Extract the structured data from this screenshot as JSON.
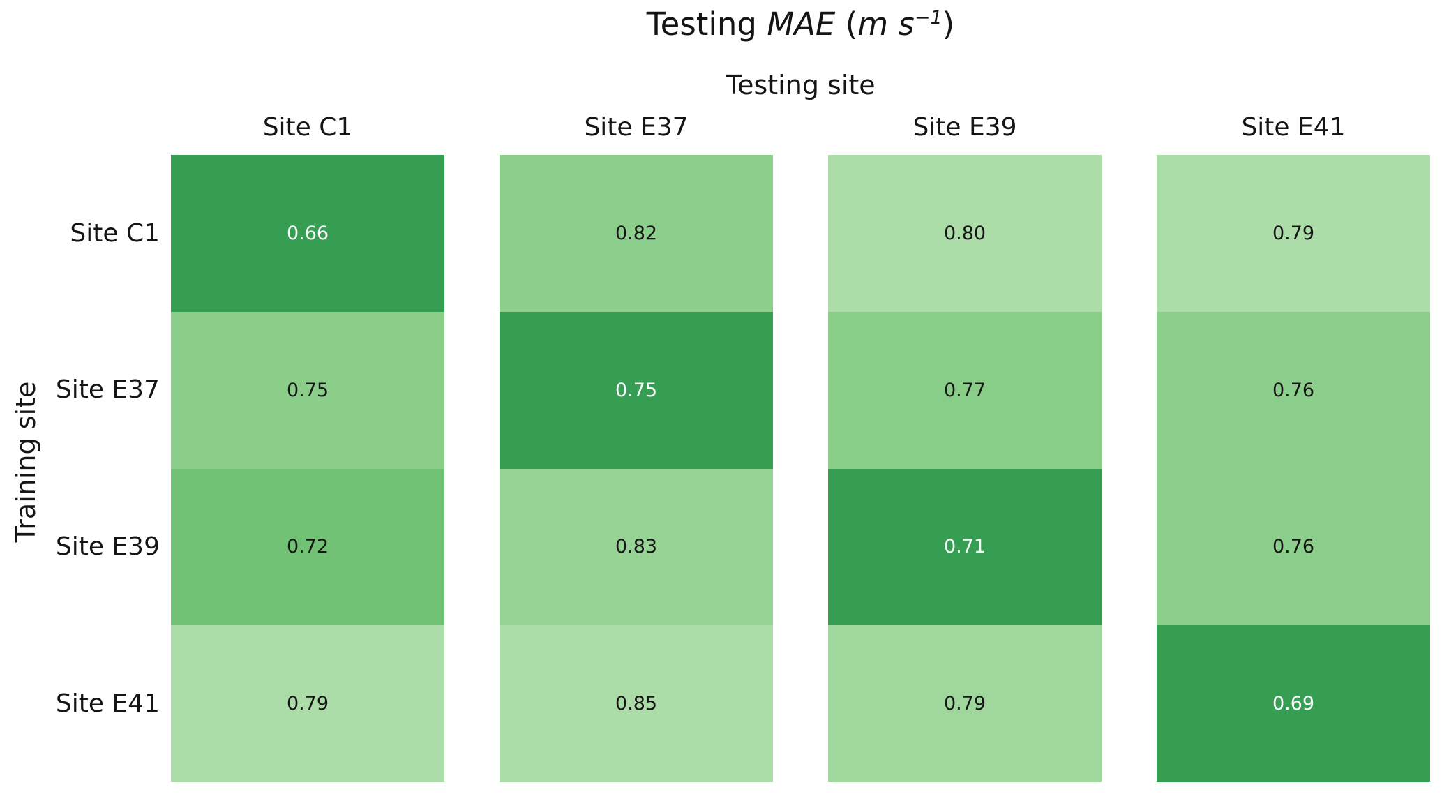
{
  "figure": {
    "background": "#ffffff"
  },
  "title_parts": {
    "prefix": "Testing ",
    "metric": "MAE",
    "open_paren": " (",
    "unit": "m s",
    "exponent": "−1",
    "close_paren": ")"
  },
  "chart_data": {
    "type": "heatmap",
    "title": "Testing MAE (m s⁻¹)",
    "x_axis_label": "Testing site",
    "y_axis_label": "Training site",
    "columns": [
      "Site C1",
      "Site E37",
      "Site E39",
      "Site E41"
    ],
    "rows": [
      "Site C1",
      "Site E37",
      "Site E39",
      "Site E41"
    ],
    "values": [
      [
        0.66,
        0.82,
        0.8,
        0.79
      ],
      [
        0.75,
        0.75,
        0.77,
        0.76
      ],
      [
        0.72,
        0.83,
        0.71,
        0.76
      ],
      [
        0.79,
        0.85,
        0.79,
        0.69
      ]
    ],
    "value_decimals": 2,
    "normalization": "per-column-min-max",
    "colormap": {
      "dark": "#359E52",
      "mid": "#76C578",
      "light": "#ACDCA7"
    },
    "text_on_dark": "#ffffff",
    "text_on_light": "#151515",
    "legend": "none",
    "grid": "off"
  }
}
